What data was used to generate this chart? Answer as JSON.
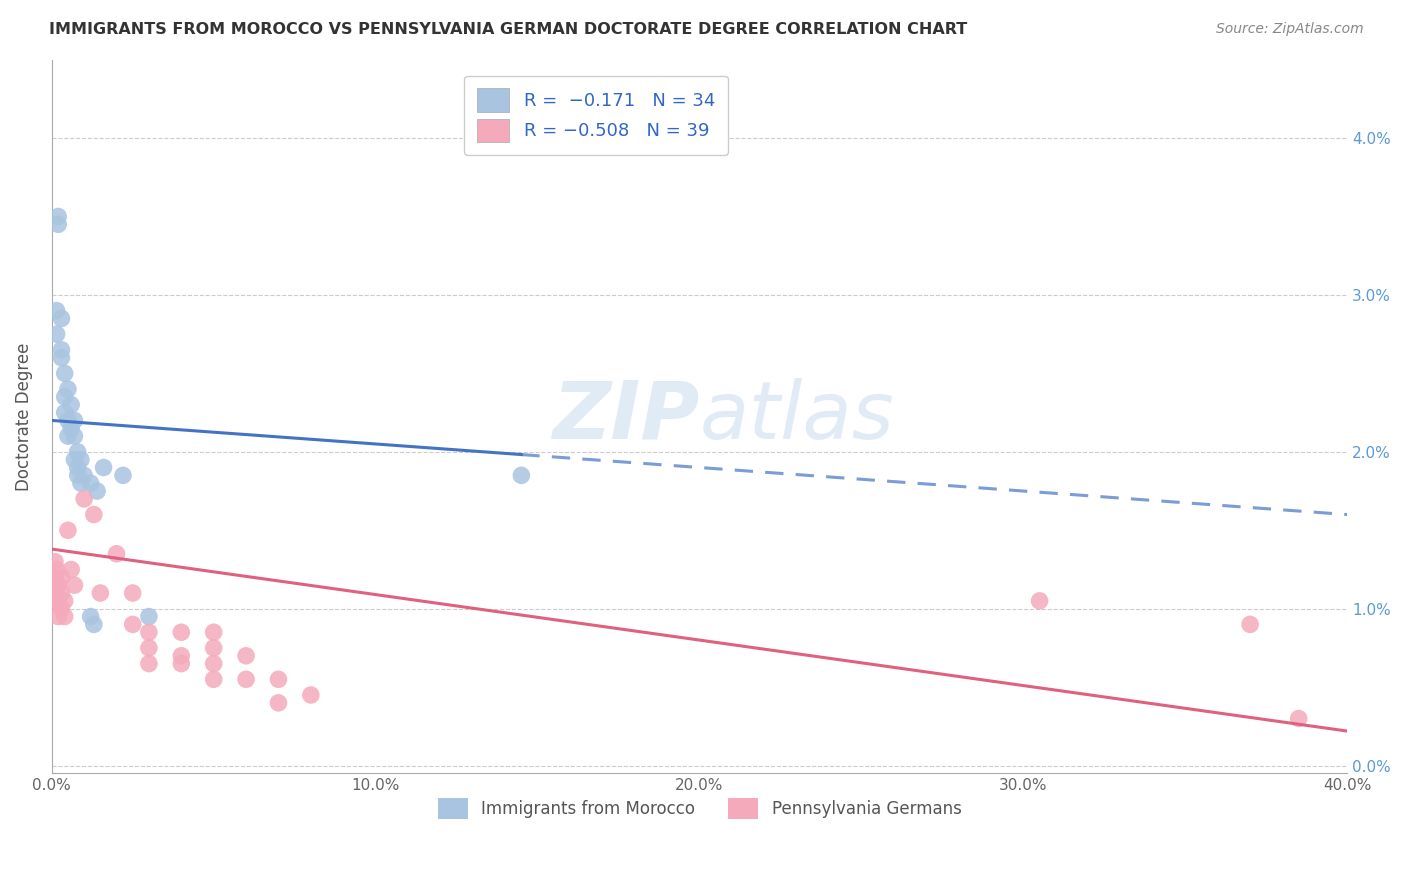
{
  "title": "IMMIGRANTS FROM MOROCCO VS PENNSYLVANIA GERMAN DOCTORATE DEGREE CORRELATION CHART",
  "source": "Source: ZipAtlas.com",
  "ylabel": "Doctorate Degree",
  "xlim": [
    0.0,
    40.0
  ],
  "ylim": [
    -0.05,
    4.5
  ],
  "blue_scatter": [
    [
      0.15,
      2.9
    ],
    [
      0.15,
      2.75
    ],
    [
      0.2,
      3.5
    ],
    [
      0.2,
      3.45
    ],
    [
      0.3,
      2.85
    ],
    [
      0.3,
      2.65
    ],
    [
      0.3,
      2.6
    ],
    [
      0.4,
      2.5
    ],
    [
      0.4,
      2.35
    ],
    [
      0.4,
      2.25
    ],
    [
      0.5,
      2.4
    ],
    [
      0.5,
      2.2
    ],
    [
      0.5,
      2.1
    ],
    [
      0.6,
      2.3
    ],
    [
      0.6,
      2.15
    ],
    [
      0.7,
      2.2
    ],
    [
      0.7,
      2.1
    ],
    [
      0.7,
      1.95
    ],
    [
      0.8,
      2.0
    ],
    [
      0.8,
      1.9
    ],
    [
      0.8,
      1.85
    ],
    [
      0.9,
      1.95
    ],
    [
      0.9,
      1.8
    ],
    [
      1.0,
      1.85
    ],
    [
      1.2,
      1.8
    ],
    [
      1.4,
      1.75
    ],
    [
      1.6,
      1.9
    ],
    [
      2.2,
      1.85
    ],
    [
      1.2,
      0.95
    ],
    [
      1.3,
      0.9
    ],
    [
      3.0,
      0.95
    ],
    [
      14.5,
      1.85
    ]
  ],
  "pink_scatter": [
    [
      0.1,
      1.3
    ],
    [
      0.1,
      1.2
    ],
    [
      0.15,
      1.25
    ],
    [
      0.15,
      1.15
    ],
    [
      0.15,
      1.05
    ],
    [
      0.2,
      1.15
    ],
    [
      0.2,
      1.05
    ],
    [
      0.2,
      0.95
    ],
    [
      0.3,
      1.2
    ],
    [
      0.3,
      1.1
    ],
    [
      0.3,
      1.0
    ],
    [
      0.4,
      1.05
    ],
    [
      0.4,
      0.95
    ],
    [
      0.5,
      1.5
    ],
    [
      0.6,
      1.25
    ],
    [
      0.7,
      1.15
    ],
    [
      1.0,
      1.7
    ],
    [
      1.3,
      1.6
    ],
    [
      1.5,
      1.1
    ],
    [
      2.0,
      1.35
    ],
    [
      2.5,
      1.1
    ],
    [
      2.5,
      0.9
    ],
    [
      3.0,
      0.85
    ],
    [
      3.0,
      0.75
    ],
    [
      3.0,
      0.65
    ],
    [
      4.0,
      0.85
    ],
    [
      4.0,
      0.7
    ],
    [
      4.0,
      0.65
    ],
    [
      5.0,
      0.85
    ],
    [
      5.0,
      0.75
    ],
    [
      5.0,
      0.65
    ],
    [
      5.0,
      0.55
    ],
    [
      6.0,
      0.7
    ],
    [
      6.0,
      0.55
    ],
    [
      7.0,
      0.55
    ],
    [
      7.0,
      0.4
    ],
    [
      8.0,
      0.45
    ],
    [
      30.5,
      1.05
    ],
    [
      37.0,
      0.9
    ],
    [
      38.5,
      0.3
    ]
  ],
  "blue_color": "#A8C4E0",
  "pink_color": "#F4AABB",
  "blue_line_color": "#4472C4",
  "pink_line_color": "#E06080",
  "bg_color": "#FFFFFF",
  "grid_color": "#CCCCCC",
  "title_color": "#333333",
  "legend_text_color": "#3366CC",
  "blue_line_x0": 0.0,
  "blue_line_y0": 2.2,
  "blue_line_x1": 40.0,
  "blue_line_y1": 1.6,
  "blue_solid_end_x": 14.5,
  "pink_line_x0": 0.0,
  "pink_line_y0": 1.38,
  "pink_line_x1": 40.0,
  "pink_line_y1": 0.22
}
